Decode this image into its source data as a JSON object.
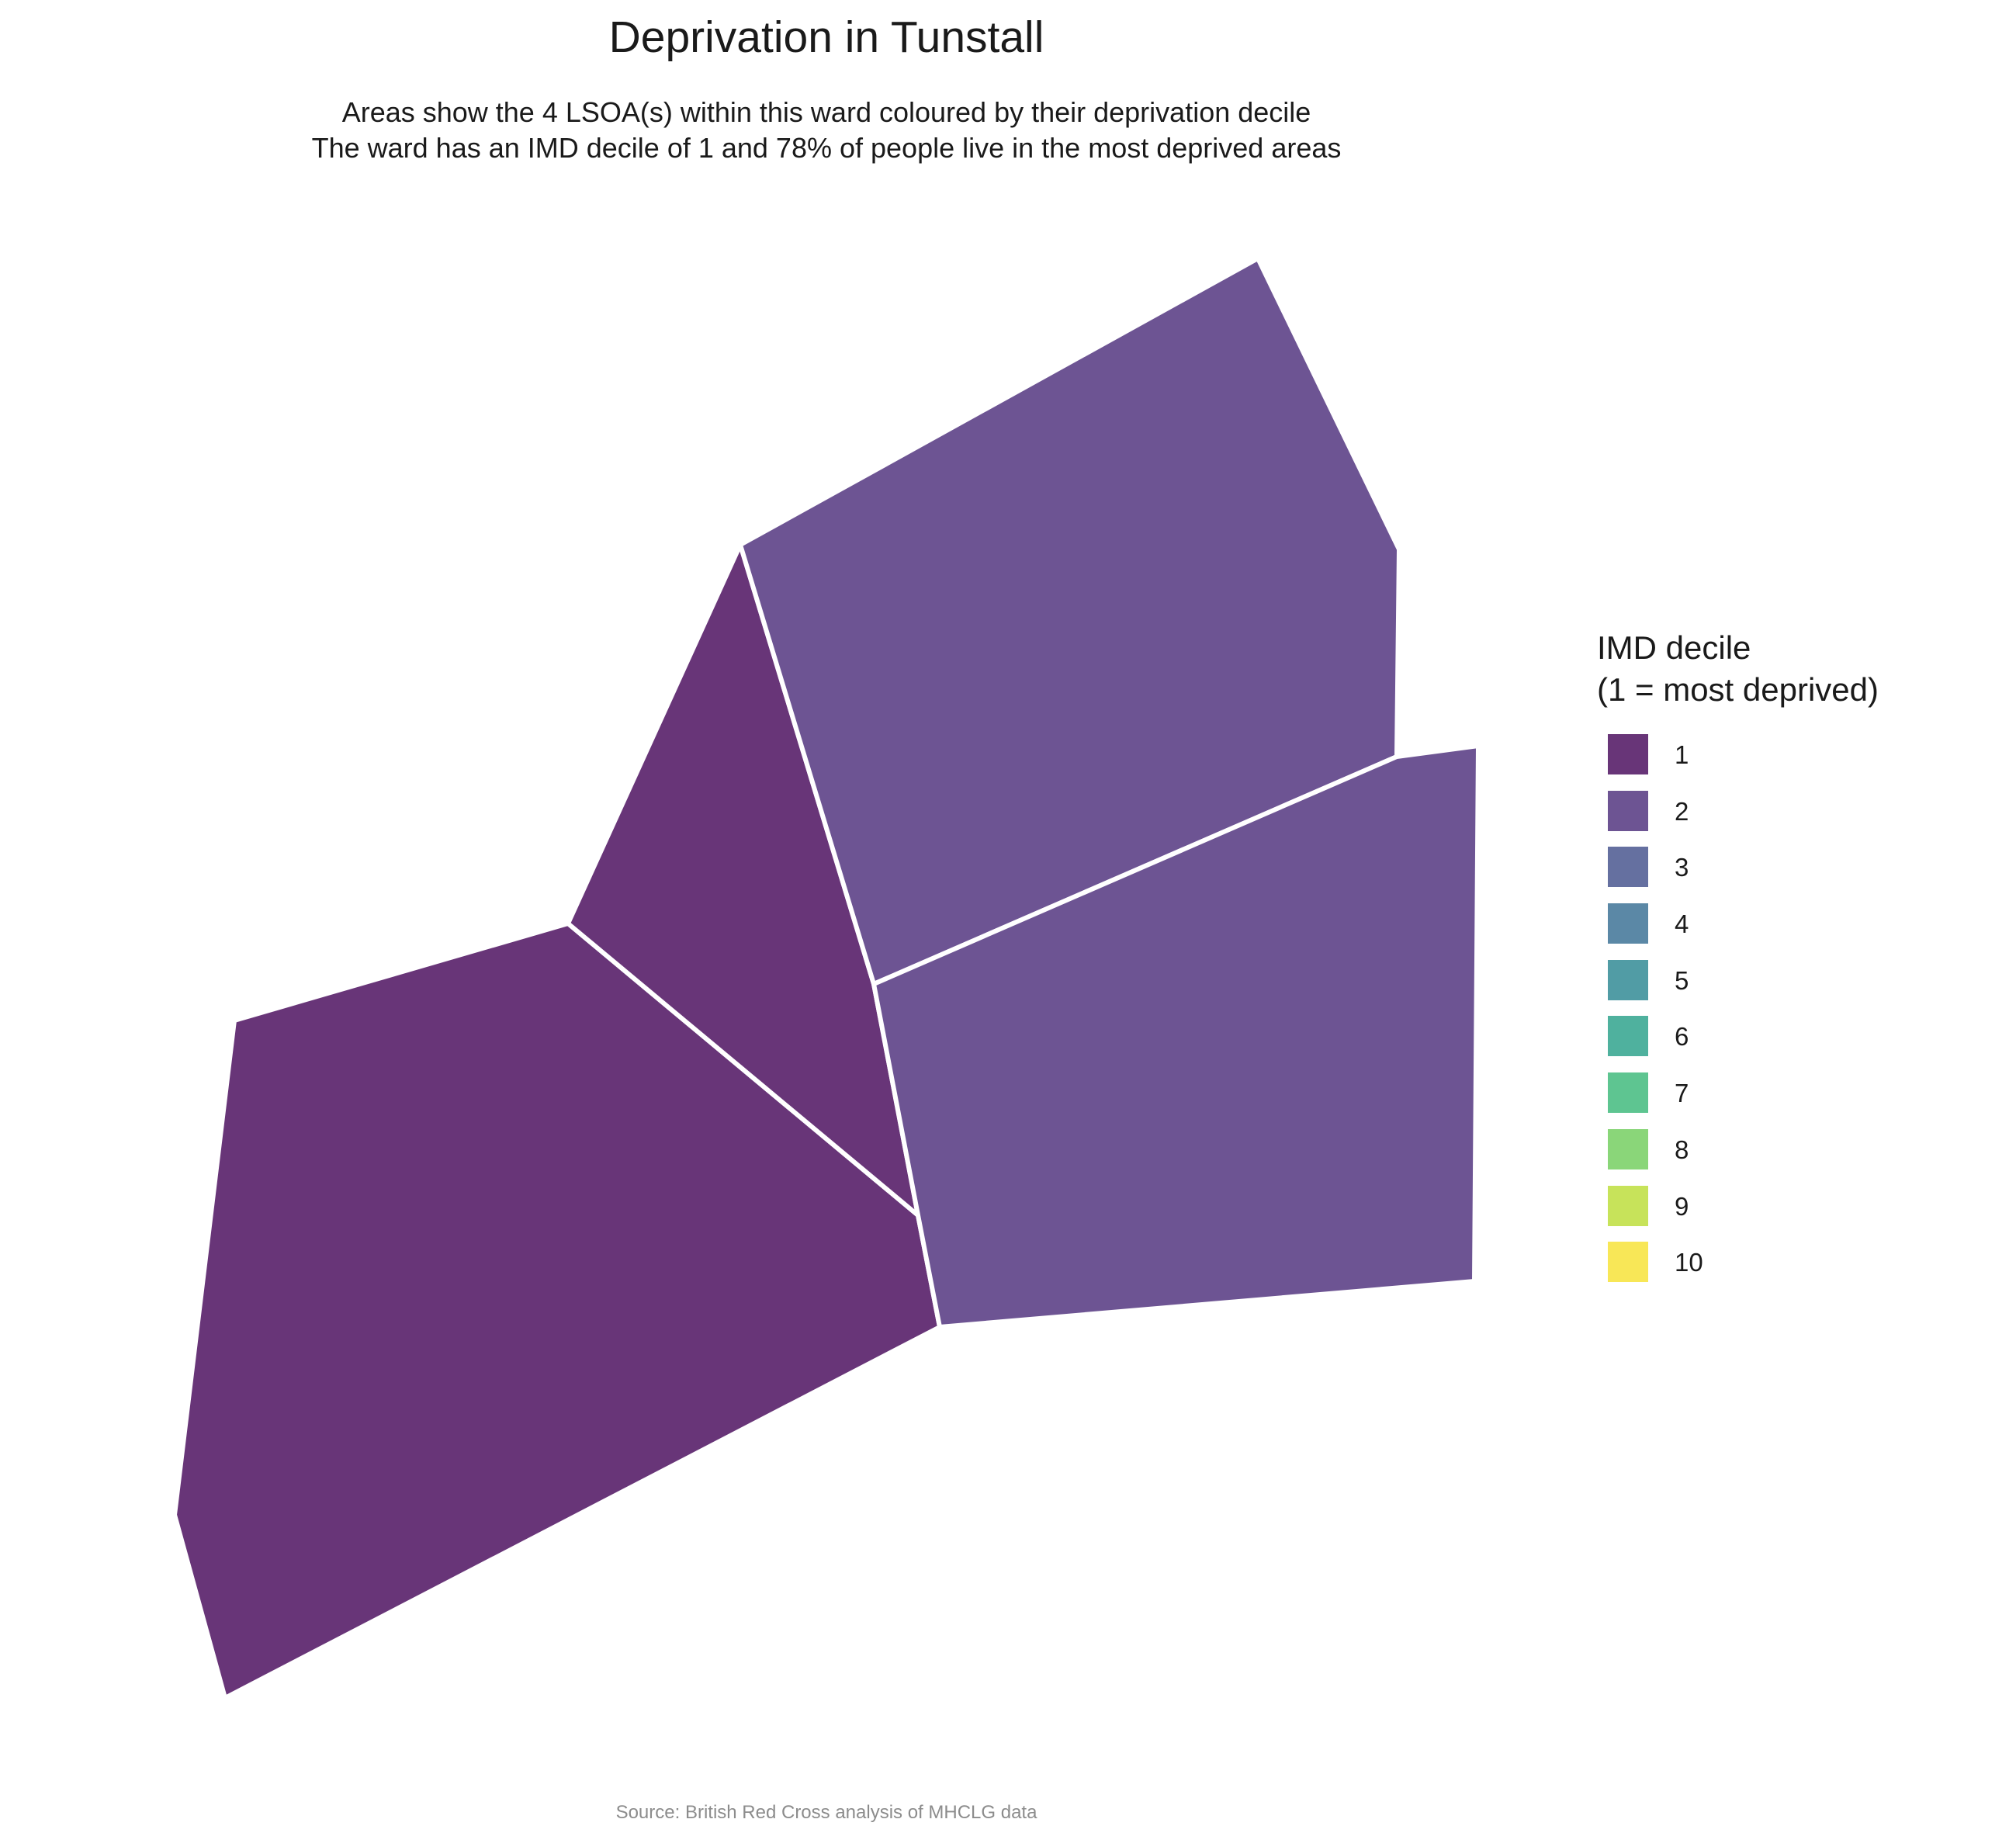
{
  "title": "Deprivation in Tunstall",
  "subtitle": {
    "line1": "Areas show the 4 LSOA(s) within this ward coloured by their deprivation decile",
    "line2": "The ward has an IMD decile of 1 and 78% of people live in the most deprived areas"
  },
  "legend": {
    "title_line1": "IMD decile",
    "title_line2": "(1 = most deprived)",
    "items": [
      {
        "label": "1",
        "color": "#683578"
      },
      {
        "label": "2",
        "color": "#6D5493"
      },
      {
        "label": "3",
        "color": "#6570A0"
      },
      {
        "label": "4",
        "color": "#5B88A6"
      },
      {
        "label": "5",
        "color": "#519CA5"
      },
      {
        "label": "6",
        "color": "#4FB19E"
      },
      {
        "label": "7",
        "color": "#5EC591"
      },
      {
        "label": "8",
        "color": "#8AD679"
      },
      {
        "label": "9",
        "color": "#C7E35A"
      },
      {
        "label": "10",
        "color": "#F8E757"
      }
    ]
  },
  "areas": [
    {
      "name": "lsoa-south-west",
      "decile": 1
    },
    {
      "name": "lsoa-central",
      "decile": 1
    },
    {
      "name": "lsoa-north-east",
      "decile": 2
    },
    {
      "name": "lsoa-east",
      "decile": 2
    }
  ],
  "caption": "Source: British Red Cross analysis of MHCLG data"
}
